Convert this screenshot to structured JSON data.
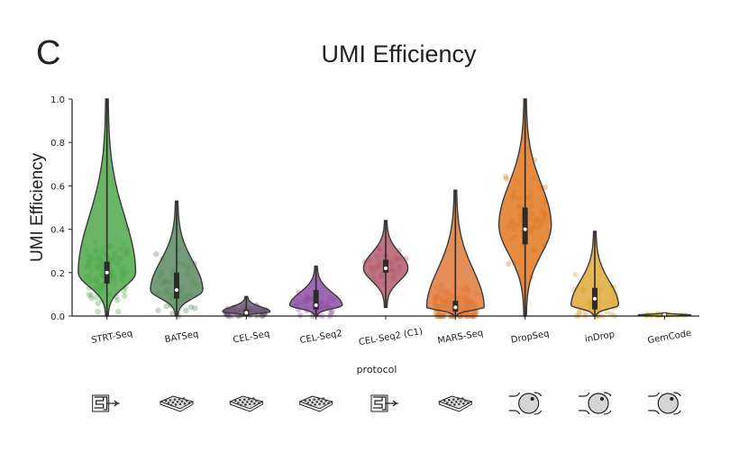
{
  "panel_label": "C",
  "chart_data": {
    "type": "violin",
    "title": "UMI Efficiency",
    "xlabel": "protocol",
    "ylabel": "UMI Efficiency",
    "ylim": [
      0,
      1.0
    ],
    "yticks": [
      "0.0",
      "0.2",
      "0.4",
      "0.6",
      "0.8",
      "1.0"
    ],
    "grid": false,
    "legend": "none",
    "series": [
      {
        "name": "STRT-Seq",
        "color": "#4fa84a",
        "min": 0.0,
        "q1": 0.15,
        "median": 0.2,
        "q3": 0.25,
        "max": 1.0,
        "mode": 0.2,
        "maxdens_halfwidth": 0.55,
        "jitter_low": 0.02,
        "jitter_high": 0.52,
        "jitter_n": 110,
        "icon": "microfluidic-chip-icon"
      },
      {
        "name": "BATSeq",
        "color": "#5a8a5f",
        "min": 0.0,
        "q1": 0.08,
        "median": 0.12,
        "q3": 0.2,
        "max": 0.53,
        "mode": 0.12,
        "maxdens_halfwidth": 0.5,
        "jitter_low": 0.0,
        "jitter_high": 0.45,
        "jitter_n": 40,
        "icon": "microwell-plate-icon"
      },
      {
        "name": "CEL-Seq",
        "color": "#6e5a78",
        "min": 0.0,
        "q1": 0.005,
        "median": 0.015,
        "q3": 0.03,
        "max": 0.09,
        "mode": 0.02,
        "maxdens_halfwidth": 0.45,
        "jitter_low": 0.0,
        "jitter_high": 0.07,
        "jitter_n": 70,
        "icon": "microwell-plate-icon"
      },
      {
        "name": "CEL-Seq2",
        "color": "#8e4ea5",
        "min": 0.0,
        "q1": 0.03,
        "median": 0.05,
        "q3": 0.12,
        "max": 0.23,
        "mode": 0.05,
        "maxdens_halfwidth": 0.5,
        "jitter_low": 0.0,
        "jitter_high": 0.16,
        "jitter_n": 40,
        "icon": "microwell-plate-icon"
      },
      {
        "name": "CEL-Seq2 (C1)",
        "color": "#b35c6f",
        "min": 0.04,
        "q1": 0.2,
        "median": 0.22,
        "q3": 0.26,
        "max": 0.44,
        "mode": 0.22,
        "maxdens_halfwidth": 0.42,
        "jitter_low": 0.15,
        "jitter_high": 0.4,
        "jitter_n": 40,
        "icon": "microfluidic-chip-icon"
      },
      {
        "name": "MARS-Seq",
        "color": "#e07a3a",
        "min": 0.0,
        "q1": 0.02,
        "median": 0.04,
        "q3": 0.07,
        "max": 0.58,
        "mode": 0.04,
        "maxdens_halfwidth": 0.55,
        "jitter_low": 0.0,
        "jitter_high": 0.25,
        "jitter_n": 170,
        "icon": "microwell-plate-icon"
      },
      {
        "name": "DropSeq",
        "color": "#e07820",
        "min": 0.0,
        "q1": 0.33,
        "median": 0.4,
        "q3": 0.5,
        "max": 1.0,
        "mode": 0.42,
        "maxdens_halfwidth": 0.5,
        "jitter_low": 0.05,
        "jitter_high": 0.75,
        "jitter_n": 60,
        "icon": "droplet-bead-icon"
      },
      {
        "name": "inDrop",
        "color": "#e0a93a",
        "min": 0.0,
        "q1": 0.03,
        "median": 0.08,
        "q3": 0.13,
        "max": 0.39,
        "mode": 0.05,
        "maxdens_halfwidth": 0.45,
        "jitter_low": 0.0,
        "jitter_high": 0.3,
        "jitter_n": 50,
        "icon": "droplet-bead-icon"
      },
      {
        "name": "GemCode",
        "color": "#e6c81a",
        "min": 0.0,
        "q1": 0.0,
        "median": 0.005,
        "q3": 0.01,
        "max": 0.015,
        "mode": 0.005,
        "maxdens_halfwidth": 0.5,
        "jitter_low": 0.0,
        "jitter_high": 0.01,
        "jitter_n": 20,
        "icon": "droplet-bead-icon"
      }
    ]
  }
}
